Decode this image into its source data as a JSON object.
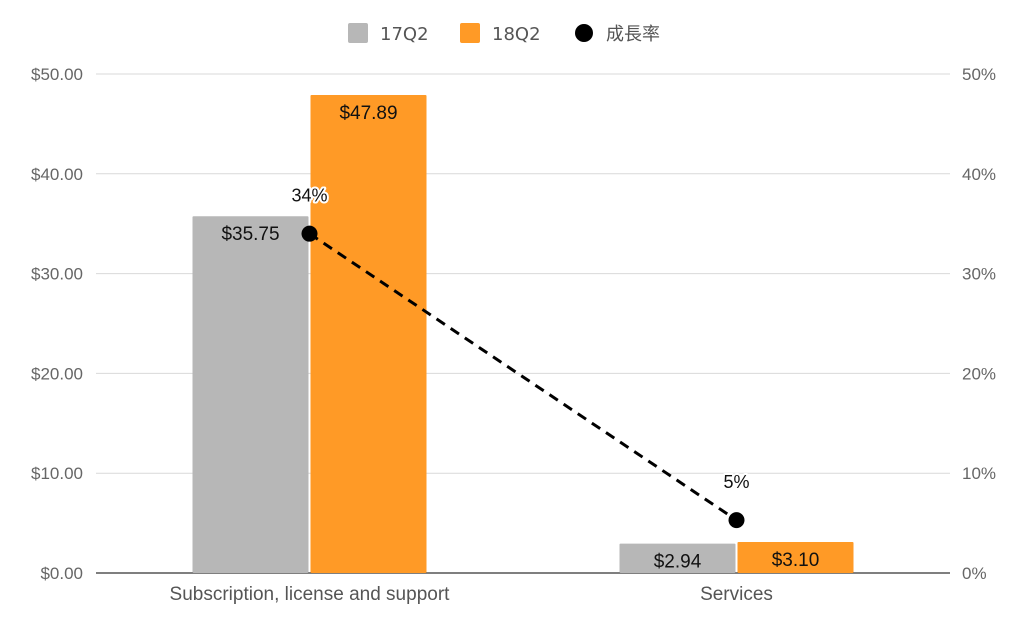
{
  "chart_data": {
    "type": "bar",
    "categories": [
      "Subscription, license and support",
      "Services"
    ],
    "series": [
      {
        "name": "17Q2",
        "values": [
          35.75,
          2.94
        ],
        "labels": [
          "$35.75",
          "$2.94"
        ],
        "color": "#b7b7b7"
      },
      {
        "name": "18Q2",
        "values": [
          47.89,
          3.1
        ],
        "labels": [
          "$47.89",
          "$3.10"
        ],
        "color": "#ff9a26"
      }
    ],
    "line_series": {
      "name": "成長率",
      "values": [
        34,
        5.3
      ],
      "labels": [
        "34%",
        "5%"
      ],
      "axis": "right",
      "style": "dashed",
      "marker": "circle",
      "color": "#000000"
    },
    "y_left": {
      "min": 0,
      "max": 50,
      "ticks": [
        "$0.00",
        "$10.00",
        "$20.00",
        "$30.00",
        "$40.00",
        "$50.00"
      ]
    },
    "y_right": {
      "min": 0,
      "max": 50,
      "ticks": [
        "0%",
        "10%",
        "20%",
        "30%",
        "40%",
        "50%"
      ]
    },
    "grid": true,
    "legend_position": "top-center"
  }
}
